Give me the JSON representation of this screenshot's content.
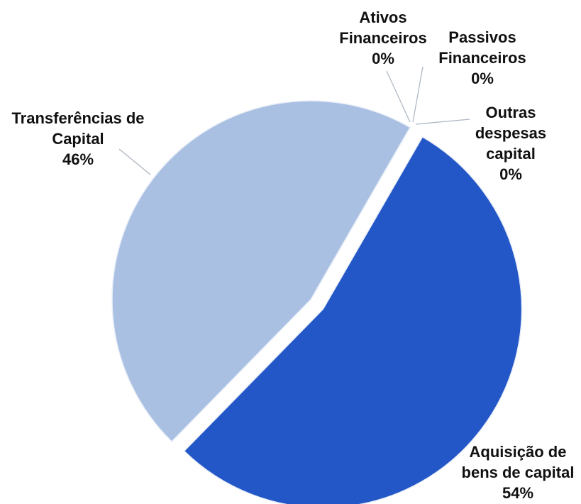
{
  "chart_data": {
    "type": "pie",
    "categories": [
      "Aquisição de bens de capital",
      "Transferências de Capital",
      "Ativos Financeiros",
      "Passivos Financeiros",
      "Outras despesas capital"
    ],
    "values": [
      54,
      46,
      0,
      0,
      0
    ],
    "value_labels": [
      "54%",
      "46%",
      "0%",
      "0%",
      "0%"
    ],
    "colors": [
      "#2356c6",
      "#a9c0e2",
      "#8aa8d8",
      "#6f8fcf",
      "#4d74c9"
    ],
    "exploded": [
      true,
      false,
      false,
      false,
      false
    ]
  }
}
